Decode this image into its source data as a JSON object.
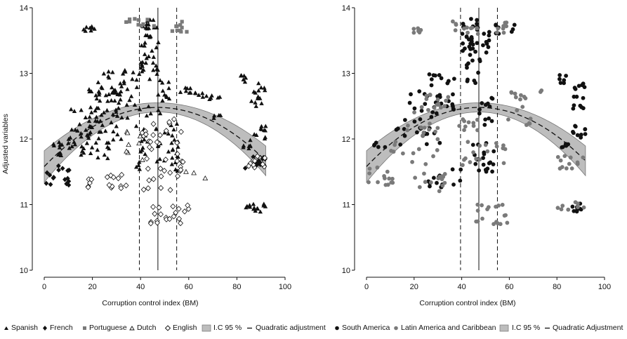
{
  "colors": {
    "black": "#111111",
    "grey_points": "#7a7a7a",
    "ci_band": "#bdbdbd",
    "ci_border": "#777777"
  },
  "chart_data": [
    {
      "type": "scatter",
      "xlabel": "Corruption control index  (BM)",
      "ylabel": "Adjusted variables",
      "xlim": [
        0,
        100
      ],
      "ylim": [
        10,
        14
      ],
      "xticks": [
        0,
        20,
        40,
        60,
        80,
        100
      ],
      "yticks": [
        10,
        11,
        12,
        13,
        14
      ],
      "grid": false,
      "vlines": [
        {
          "x": 39.5,
          "style": "dashed"
        },
        {
          "x": 47.2,
          "style": "solid"
        },
        {
          "x": 55.0,
          "style": "dashed"
        }
      ],
      "fit": {
        "label": "Quadratic adjustment",
        "band_label": "I.C 95 %",
        "formula": "y = 11.58 + 0.0382x - 0.000405x^2",
        "band_halfwidth_edges": 0.24,
        "band_halfwidth_center": 0.07
      },
      "legend": {
        "position": "bottom",
        "entries": [
          "Spanish",
          "French",
          "Portuguese",
          "Dutch",
          "English",
          "I.C 95 %",
          "Quadratic adjustment"
        ]
      },
      "series": [
        {
          "name": "Spanish",
          "marker": "filled-triangle",
          "clusters": [
            {
              "x": [
                3,
                8
              ],
              "y": [
                11.7,
                11.95
              ],
              "n": 10
            },
            {
              "x": [
                9,
                18
              ],
              "y": [
                11.7,
                12.2
              ],
              "n": 14
            },
            {
              "x": [
                15,
                32
              ],
              "y": [
                11.7,
                12.3
              ],
              "n": 25
            },
            {
              "x": [
                17,
                36
              ],
              "y": [
                12.1,
                12.8
              ],
              "n": 45
            },
            {
              "x": [
                22,
                38
              ],
              "y": [
                12.5,
                13.05
              ],
              "n": 28
            },
            {
              "x": [
                8,
                22
              ],
              "y": [
                11.95,
                12.5
              ],
              "n": 12
            },
            {
              "x": [
                16,
                22
              ],
              "y": [
                13.64,
                13.72
              ],
              "n": 8
            },
            {
              "x": [
                38,
                43
              ],
              "y": [
                11.45,
                12.2
              ],
              "n": 14
            },
            {
              "x": [
                38,
                52
              ],
              "y": [
                12.35,
                13.0
              ],
              "n": 22
            },
            {
              "x": [
                40,
                48
              ],
              "y": [
                13.0,
                13.6
              ],
              "n": 26
            },
            {
              "x": [
                40,
                47
              ],
              "y": [
                13.55,
                13.85
              ],
              "n": 14
            },
            {
              "x": [
                45,
                56
              ],
              "y": [
                11.65,
                12.25
              ],
              "n": 24
            },
            {
              "x": [
                53,
                57
              ],
              "y": [
                11.5,
                11.8
              ],
              "n": 6
            },
            {
              "x": [
                56,
                64
              ],
              "y": [
                12.7,
                12.78
              ],
              "n": 8
            },
            {
              "x": [
                62,
                74
              ],
              "y": [
                12.6,
                12.72
              ],
              "n": 10
            },
            {
              "x": [
                70,
                74
              ],
              "y": [
                12.15,
                12.4
              ],
              "n": 4
            },
            {
              "x": [
                81,
                84
              ],
              "y": [
                12.85,
                12.98
              ],
              "n": 6
            },
            {
              "x": [
                82,
                86
              ],
              "y": [
                11.85,
                11.98
              ],
              "n": 6
            },
            {
              "x": [
                86,
                92
              ],
              "y": [
                12.45,
                12.85
              ],
              "n": 14
            },
            {
              "x": [
                86,
                92
              ],
              "y": [
                12.0,
                12.2
              ],
              "n": 10
            },
            {
              "x": [
                83,
                92
              ],
              "y": [
                10.88,
                11.02
              ],
              "n": 14
            }
          ]
        },
        {
          "name": "French",
          "marker": "filled-diamond",
          "clusters": [
            {
              "x": [
                0,
                11
              ],
              "y": [
                11.28,
                11.6
              ],
              "n": 16
            },
            {
              "x": [
                81,
                92
              ],
              "y": [
                11.55,
                11.75
              ],
              "n": 12
            }
          ]
        },
        {
          "name": "Portuguese",
          "marker": "filled-square",
          "clusters": [
            {
              "x": [
                34,
                47
              ],
              "y": [
                13.72,
                13.85
              ],
              "n": 10
            },
            {
              "x": [
                53,
                60
              ],
              "y": [
                13.6,
                13.8
              ],
              "n": 10
            }
          ]
        },
        {
          "name": "Dutch",
          "marker": "hollow-triangle",
          "clusters": [
            {
              "x": [
                34,
                44
              ],
              "y": [
                11.65,
                12.15
              ],
              "n": 8
            },
            {
              "x": [
                57,
                68
              ],
              "y": [
                11.38,
                11.55
              ],
              "n": 3
            }
          ]
        },
        {
          "name": "English",
          "marker": "hollow-diamond",
          "clusters": [
            {
              "x": [
                18,
                37
              ],
              "y": [
                11.25,
                11.48
              ],
              "n": 16
            },
            {
              "x": [
                40,
                58
              ],
              "y": [
                11.2,
                12.35
              ],
              "n": 40
            },
            {
              "x": [
                44,
                60
              ],
              "y": [
                10.7,
                11.0
              ],
              "n": 20
            },
            {
              "x": [
                80,
                92
              ],
              "y": [
                11.55,
                11.75
              ],
              "n": 10
            }
          ]
        }
      ]
    },
    {
      "type": "scatter",
      "xlabel": "Corruption control index  (BM)",
      "xlim": [
        0,
        100
      ],
      "ylim": [
        10,
        14
      ],
      "xticks": [
        0,
        20,
        40,
        60,
        80,
        100
      ],
      "yticks": [
        10,
        11,
        12,
        13,
        14
      ],
      "grid": false,
      "vlines": [
        {
          "x": 39.5,
          "style": "dashed"
        },
        {
          "x": 47.2,
          "style": "solid"
        },
        {
          "x": 55.0,
          "style": "dashed"
        }
      ],
      "fit": {
        "label": "Quadratic Adjustment",
        "band_label": "I.C 95 %",
        "formula": "y = 11.58 + 0.0382x - 0.000405x^2",
        "band_halfwidth_edges": 0.24,
        "band_halfwidth_center": 0.07
      },
      "legend": {
        "position": "bottom",
        "entries": [
          "South America",
          "Latin America and Caribbean",
          "I.C 95 %",
          "Quadratic Adjustment"
        ]
      },
      "series": [
        {
          "name": "South America",
          "marker": "filled-circle",
          "color": "black",
          "clusters": [
            {
              "x": [
                3,
                8
              ],
              "y": [
                11.75,
                11.95
              ],
              "n": 5
            },
            {
              "x": [
                12,
                32
              ],
              "y": [
                11.9,
                12.3
              ],
              "n": 18
            },
            {
              "x": [
                18,
                38
              ],
              "y": [
                12.3,
                12.75
              ],
              "n": 26
            },
            {
              "x": [
                26,
                38
              ],
              "y": [
                12.8,
                13.0
              ],
              "n": 10
            },
            {
              "x": [
                26,
                34
              ],
              "y": [
                11.25,
                11.45
              ],
              "n": 10
            },
            {
              "x": [
                38,
                52
              ],
              "y": [
                13.3,
                13.65
              ],
              "n": 26
            },
            {
              "x": [
                40,
                47
              ],
              "y": [
                13.65,
                13.85
              ],
              "n": 10
            },
            {
              "x": [
                42,
                48
              ],
              "y": [
                12.85,
                13.3
              ],
              "n": 12
            },
            {
              "x": [
                44,
                54
              ],
              "y": [
                11.5,
                11.95
              ],
              "n": 20
            },
            {
              "x": [
                46,
                54
              ],
              "y": [
                12.2,
                12.65
              ],
              "n": 12
            },
            {
              "x": [
                54,
                63
              ],
              "y": [
                13.6,
                13.78
              ],
              "n": 8
            },
            {
              "x": [
                36,
                40
              ],
              "y": [
                11.3,
                11.6
              ],
              "n": 4
            },
            {
              "x": [
                81,
                84
              ],
              "y": [
                12.85,
                12.98
              ],
              "n": 6
            },
            {
              "x": [
                82,
                86
              ],
              "y": [
                11.85,
                11.98
              ],
              "n": 6
            },
            {
              "x": [
                86,
                92
              ],
              "y": [
                12.45,
                12.85
              ],
              "n": 14
            },
            {
              "x": [
                86,
                92
              ],
              "y": [
                12.0,
                12.2
              ],
              "n": 10
            },
            {
              "x": [
                86,
                92
              ],
              "y": [
                10.88,
                11.02
              ],
              "n": 8
            }
          ]
        },
        {
          "name": "Latin America and Caribbean",
          "marker": "filled-circle",
          "color": "grey",
          "clusters": [
            {
              "x": [
                0,
                11
              ],
              "y": [
                11.28,
                11.6
              ],
              "n": 14
            },
            {
              "x": [
                16,
                24
              ],
              "y": [
                13.62,
                13.72
              ],
              "n": 6
            },
            {
              "x": [
                18,
                36
              ],
              "y": [
                11.2,
                11.5
              ],
              "n": 14
            },
            {
              "x": [
                10,
                30
              ],
              "y": [
                11.6,
                12.3
              ],
              "n": 22
            },
            {
              "x": [
                20,
                38
              ],
              "y": [
                12.4,
                12.7
              ],
              "n": 16
            },
            {
              "x": [
                34,
                47
              ],
              "y": [
                13.6,
                13.85
              ],
              "n": 12
            },
            {
              "x": [
                38,
                60
              ],
              "y": [
                11.6,
                12.4
              ],
              "n": 28
            },
            {
              "x": [
                44,
                60
              ],
              "y": [
                10.7,
                11.0
              ],
              "n": 18
            },
            {
              "x": [
                53,
                60
              ],
              "y": [
                13.6,
                13.78
              ],
              "n": 8
            },
            {
              "x": [
                60,
                74
              ],
              "y": [
                12.6,
                12.75
              ],
              "n": 10
            },
            {
              "x": [
                62,
                70
              ],
              "y": [
                12.2,
                12.5
              ],
              "n": 6
            },
            {
              "x": [
                80,
                92
              ],
              "y": [
                11.55,
                11.75
              ],
              "n": 12
            },
            {
              "x": [
                80,
                92
              ],
              "y": [
                10.85,
                11.05
              ],
              "n": 8
            }
          ]
        }
      ]
    }
  ]
}
